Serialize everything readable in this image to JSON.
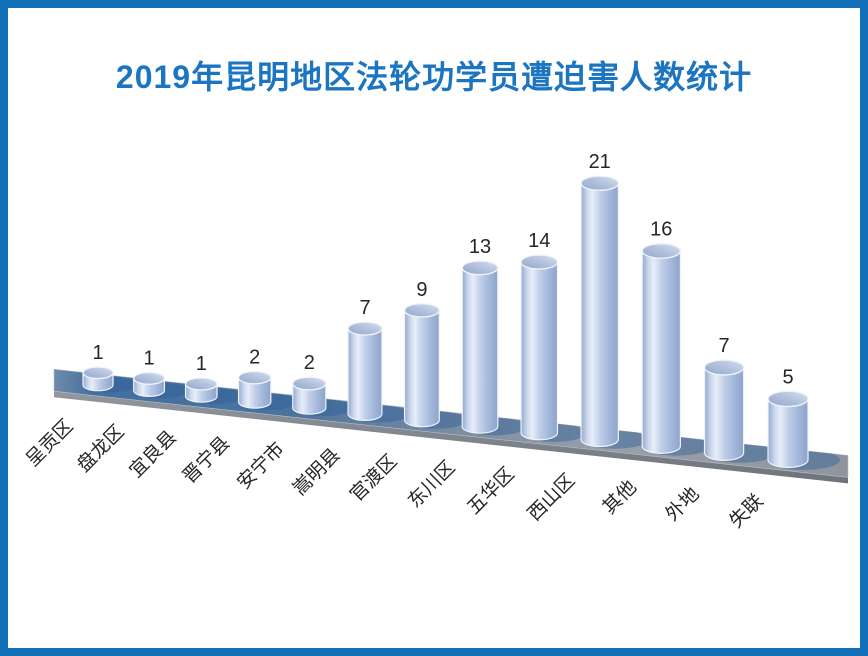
{
  "title": {
    "text": "2019年昆明地区法轮功学员遭迫害人数统计",
    "color": "#1b75c1"
  },
  "frame": {
    "border_color": "#1170b8",
    "background": "#ffffff"
  },
  "chart_data": {
    "type": "bar",
    "style": "3d-cylinder",
    "title": "2019年昆明地区法轮功学员遭迫害人数统计",
    "categories": [
      "呈贡区",
      "盘龙区",
      "宜良县",
      "晋宁县",
      "安宁市",
      "嵩明县",
      "官渡区",
      "东川区",
      "五华区",
      "西山区",
      "其他",
      "外地",
      "失联"
    ],
    "values": [
      1,
      1,
      1,
      2,
      2,
      7,
      9,
      13,
      14,
      21,
      16,
      7,
      5
    ],
    "data_labels": true,
    "xlabel": "",
    "ylabel": "",
    "legend": "none",
    "grid": false,
    "axes_visible": false,
    "category_label_rotation_deg": -45,
    "colors": {
      "cylinder_edge": "#8da3c9",
      "cylinder_body": "#c2d0e9",
      "cylinder_highlight": "#e8eef8",
      "cylinder_top_light": "#d6e0f0",
      "cylinder_top_dark": "#92a7ca",
      "cylinder_stroke": "#eff3fa",
      "platform_blue": "#43709f",
      "platform_gray": "#99a0a9",
      "platform_side": "#7c828c",
      "bar_shadow": "#2f5f98",
      "value_label": "#262626",
      "category_label": "#262626"
    }
  }
}
